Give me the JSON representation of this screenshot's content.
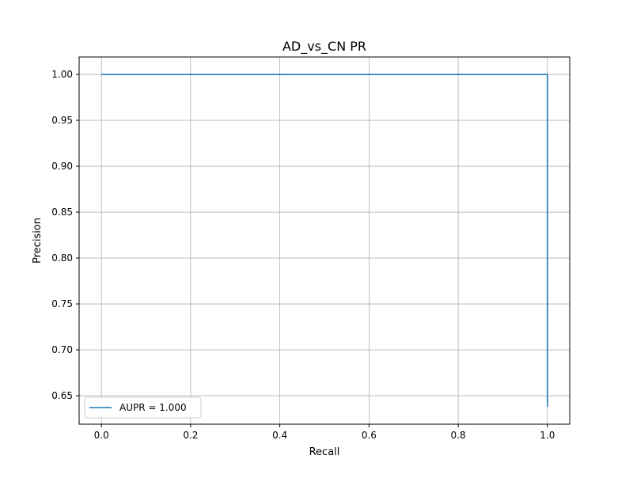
{
  "chart_data": {
    "type": "line",
    "title": "AD_vs_CN PR",
    "xlabel": "Recall",
    "ylabel": "Precision",
    "xlim": [
      -0.05,
      1.05
    ],
    "ylim": [
      0.619,
      1.019
    ],
    "grid": true,
    "x_ticks": [
      0.0,
      0.2,
      0.4,
      0.6,
      0.8,
      1.0
    ],
    "x_tick_labels": [
      "0.0",
      "0.2",
      "0.4",
      "0.6",
      "0.8",
      "1.0"
    ],
    "y_ticks": [
      0.65,
      0.7,
      0.75,
      0.8,
      0.85,
      0.9,
      0.95,
      1.0
    ],
    "y_tick_labels": [
      "0.65",
      "0.70",
      "0.75",
      "0.80",
      "0.85",
      "0.90",
      "0.95",
      "1.00"
    ],
    "legend_placement": "lower-left",
    "series": [
      {
        "name": "AUPR = 1.000",
        "color": "#1f77b4",
        "x": [
          0.0,
          1.0,
          1.0
        ],
        "y": [
          1.0,
          1.0,
          0.638
        ]
      }
    ]
  }
}
